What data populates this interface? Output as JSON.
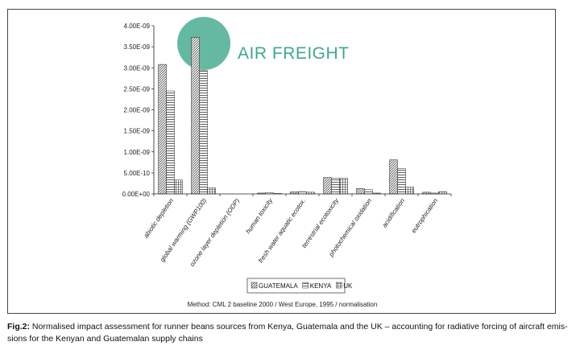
{
  "chart_data": {
    "type": "bar",
    "categories": [
      "abiotic depletion",
      "global warming (GWP100)",
      "ozone layer depletion (ODP)",
      "human toxicity",
      "fresh water aquatic ecotox.",
      "terrestrial ecotoxicity",
      "photochemical oxidation",
      "acidification",
      "eutrophication"
    ],
    "series": [
      {
        "name": "GUATEMALA",
        "values": [
          3.08e-09,
          3.72e-09,
          0,
          2e-11,
          5e-11,
          3.9e-10,
          1.3e-10,
          8.1e-10,
          4e-11
        ]
      },
      {
        "name": "KENYA",
        "values": [
          2.45e-09,
          2.93e-09,
          0,
          3e-11,
          5e-11,
          3.7e-10,
          1e-10,
          6e-10,
          2e-11
        ]
      },
      {
        "name": "UK",
        "values": [
          3.3e-10,
          1.4e-10,
          0,
          1e-11,
          4e-11,
          3.7e-10,
          2e-11,
          1.6e-10,
          5e-11
        ]
      }
    ],
    "y_ticks": [
      "0.00E+00",
      "5.00E-10",
      "1.00E-09",
      "1.50E-09",
      "2.00E-09",
      "2.50E-09",
      "3.00E-09",
      "3.50E-09",
      "4.00E-09"
    ],
    "ylim": [
      0,
      4e-09
    ],
    "legend_position": "bottom",
    "grid": false
  },
  "annotation": {
    "label": "AIR FREIGHT",
    "color": "#3ea88c"
  },
  "method_note": "Method: CML 2 baseline 2000 / West Europe, 1995 / normalisation",
  "caption": {
    "label": "Fig.2:",
    "text": " Normalised impact assessment for runner beans sources from Kenya, Guatemala and the UK – accounting for radiative forcing of aircraft emis-",
    "text2": "sions for the Kenyan and Guatemalan supply chains"
  }
}
